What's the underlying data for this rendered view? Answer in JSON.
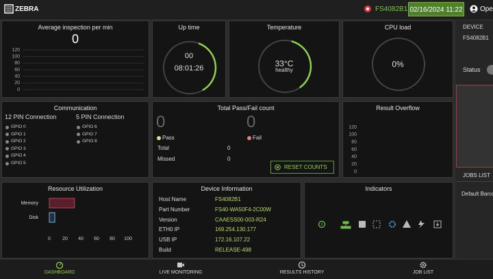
{
  "header": {
    "logo": "ZEBRA",
    "device": "FS4082B1",
    "datetime": "02/16/2024 11:22",
    "user": "Ope"
  },
  "panels": {
    "avg_inspection": {
      "title": "Average inspection per min",
      "value": 0,
      "yticks": [
        120,
        100,
        80,
        60,
        40,
        20,
        0
      ]
    },
    "uptime": {
      "title": "Up time",
      "days": "00",
      "time": "08:01:26"
    },
    "temperature": {
      "title": "Temperature",
      "value": "33°C",
      "status": "healthy"
    },
    "cpu": {
      "title": "CPU load",
      "value": "0%"
    },
    "communication": {
      "title": "Communication",
      "pin12": {
        "title": "12 PIN Connection",
        "gpio": [
          "GPIO 0",
          "GPIO 1",
          "GPIO 2",
          "GPIO 3",
          "GPIO 4",
          "GPIO 5"
        ]
      },
      "pin5": {
        "title": "5 PIN Connection",
        "gpio": [
          "GPIO 6",
          "GPIO 7",
          "GPIO 8"
        ]
      }
    },
    "pass_fail": {
      "title": "Total Pass/Fail count",
      "pass_count": 0,
      "fail_count": 0,
      "pass": "Pass",
      "fail": "Fail",
      "total": "Total",
      "total_value": 0,
      "missed": "Missed",
      "missed_value": 0,
      "reset": "RESET COUNTS"
    },
    "overflow": {
      "title": "Result Overflow",
      "yticks": [
        120,
        100,
        80,
        60,
        40,
        20,
        0
      ]
    },
    "resource": {
      "title": "Resource Utilization",
      "categories": [
        "Memory",
        "Disk"
      ],
      "values": [
        32,
        7
      ],
      "xlim": [
        0,
        100
      ],
      "xticks": [
        0,
        20,
        40,
        60,
        80,
        100
      ]
    },
    "device_info": {
      "title": "Device Information",
      "rows": [
        [
          "Host Name",
          "FS4082B1"
        ],
        [
          "Part Number",
          "FS40-WA50F4-2C00W"
        ],
        [
          "Version",
          "CAAESS00-003-R24"
        ],
        [
          "ETH0 IP",
          "169.254.130.177"
        ],
        [
          "USB IP",
          "172.16.107.22"
        ],
        [
          "Build",
          "RELEASE-498"
        ]
      ]
    },
    "indicators": {
      "title": "Indicators"
    }
  },
  "sidebar": {
    "device": "DEVICE",
    "name": "FS4082B1",
    "status": "Status",
    "jobs": "JOBS LIST",
    "job": "Default Barco"
  },
  "nav": [
    "DASHBOARD",
    "LIVE MONITORING",
    "RESULTS HISTORY",
    "JOB LIST"
  ]
}
